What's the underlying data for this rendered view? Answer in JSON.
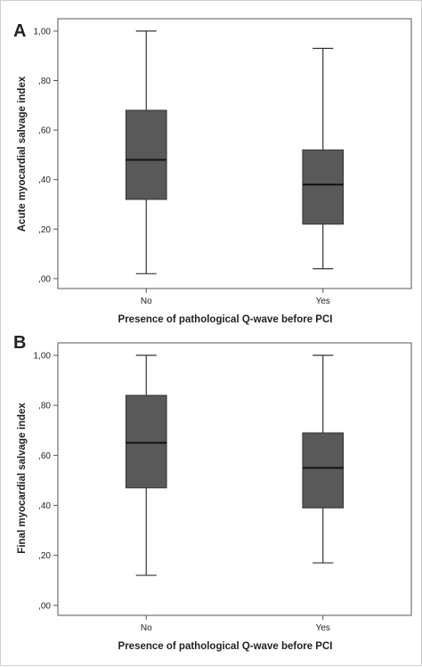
{
  "chart_data": [
    {
      "type": "box",
      "panel_label": "A",
      "xlabel": "Presence of pathological Q-wave before PCI",
      "ylabel": "Acute myocardial salvage index",
      "categories": [
        "No",
        "Yes"
      ],
      "yticks": [
        "1,00",
        ",80",
        ",60",
        ",40",
        ",20",
        ",00"
      ],
      "ytick_values": [
        1.0,
        0.8,
        0.6,
        0.4,
        0.2,
        0.0
      ],
      "ylim": [
        -0.04,
        1.05
      ],
      "grid": false,
      "series": [
        {
          "category": "No",
          "min": 0.02,
          "q1": 0.32,
          "median": 0.48,
          "q3": 0.68,
          "max": 1.0
        },
        {
          "category": "Yes",
          "min": 0.04,
          "q1": 0.22,
          "median": 0.38,
          "q3": 0.52,
          "max": 0.93
        }
      ],
      "box_color": "#595959"
    },
    {
      "type": "box",
      "panel_label": "B",
      "xlabel": "Presence of pathological Q-wave before PCI",
      "ylabel": "Final myocardial salvage index",
      "categories": [
        "No",
        "Yes"
      ],
      "yticks": [
        "1,00",
        ",80",
        ",60",
        ",40",
        ",20",
        ",00"
      ],
      "ytick_values": [
        1.0,
        0.8,
        0.6,
        0.4,
        0.2,
        0.0
      ],
      "ylim": [
        -0.04,
        1.05
      ],
      "grid": false,
      "series": [
        {
          "category": "No",
          "min": 0.12,
          "q1": 0.47,
          "median": 0.65,
          "q3": 0.84,
          "max": 1.0
        },
        {
          "category": "Yes",
          "min": 0.17,
          "q1": 0.39,
          "median": 0.55,
          "q3": 0.69,
          "max": 1.0
        }
      ],
      "box_color": "#595959"
    }
  ]
}
